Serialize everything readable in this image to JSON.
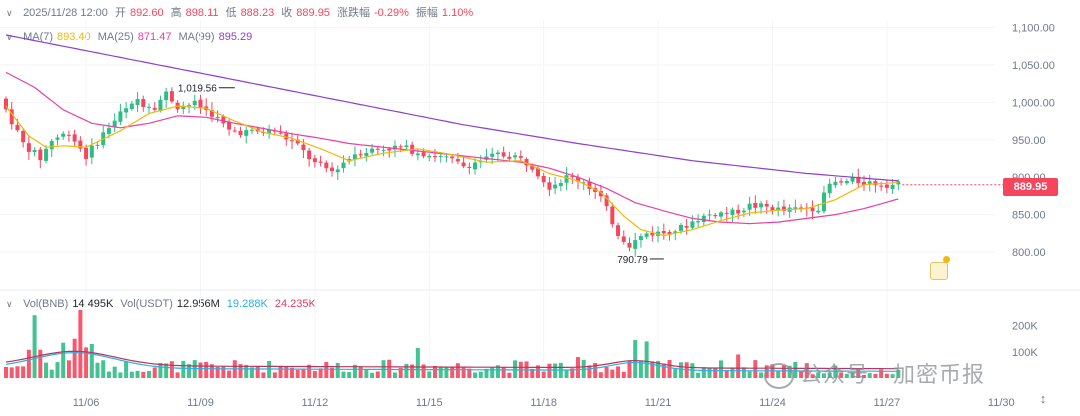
{
  "header": {
    "datetime": "2025/11/28 12:00",
    "open_label": "开",
    "open": "892.60",
    "high_label": "高",
    "high": "898.11",
    "low_label": "低",
    "low": "888.23",
    "close_label": "收",
    "close": "889.95",
    "change_label": "涨跌幅",
    "change": "-0.29%",
    "amplitude_label": "振幅",
    "amplitude": "1.10%"
  },
  "ma": {
    "ma7_label": "MA(7)",
    "ma7": "893.40",
    "ma25_label": "MA(25)",
    "ma25": "871.47",
    "ma99_label": "MA(99)",
    "ma99": "895.29"
  },
  "volume_header": {
    "vol_label": "Vol(BNB)",
    "vol": "14.495K",
    "vol_usdt_label": "Vol(USDT)",
    "vol_usdt": "12.956M",
    "v1": "19.288K",
    "v2": "24.235K"
  },
  "current_price_tag": "889.95",
  "watermark": {
    "text": "公众号 · 加密币报"
  },
  "colors": {
    "up": "#2ebd85",
    "down": "#f6465d",
    "ma7": "#f0b90b",
    "ma25": "#eb3fa3",
    "ma99": "#8c3fd1",
    "vol_ma1": "#2ab0e6",
    "vol_ma2": "#b5375a"
  },
  "chart_data": {
    "type": "candlestick",
    "price_axis": {
      "ticks": [
        "1,100.00",
        "1,050.00",
        "1,000.00",
        "950.00",
        "900.00",
        "850.00",
        "800.00"
      ],
      "range": [
        760,
        1110
      ]
    },
    "volume_axis": {
      "ticks": [
        "200K",
        "100K"
      ],
      "range": [
        0,
        260000
      ]
    },
    "x_ticks": [
      "11/06",
      "11/09",
      "11/12",
      "11/15",
      "11/18",
      "11/21",
      "11/24",
      "11/27",
      "11/30"
    ],
    "annotations": {
      "high_label": "1,019.56",
      "low_label": "790.79"
    },
    "anchors": [
      [
        0,
        1005
      ],
      [
        4,
        945
      ],
      [
        7,
        925
      ],
      [
        9,
        950
      ],
      [
        12,
        960
      ],
      [
        15,
        928
      ],
      [
        18,
        958
      ],
      [
        21,
        985
      ],
      [
        24,
        1000
      ],
      [
        27,
        995
      ],
      [
        29,
        1012
      ],
      [
        31,
        995
      ],
      [
        34,
        998
      ],
      [
        37,
        985
      ],
      [
        40,
        962
      ],
      [
        44,
        960
      ],
      [
        48,
        962
      ],
      [
        52,
        942
      ],
      [
        55,
        918
      ],
      [
        58,
        908
      ],
      [
        62,
        932
      ],
      [
        66,
        938
      ],
      [
        70,
        940
      ],
      [
        74,
        932
      ],
      [
        78,
        925
      ],
      [
        81,
        915
      ],
      [
        84,
        922
      ],
      [
        87,
        930
      ],
      [
        90,
        928
      ],
      [
        93,
        915
      ],
      [
        96,
        888
      ],
      [
        99,
        900
      ],
      [
        102,
        895
      ],
      [
        105,
        872
      ],
      [
        108,
        825
      ],
      [
        110,
        810
      ],
      [
        113,
        825
      ],
      [
        116,
        826
      ],
      [
        119,
        832
      ],
      [
        122,
        845
      ],
      [
        125,
        852
      ],
      [
        128,
        852
      ],
      [
        131,
        862
      ],
      [
        134,
        860
      ],
      [
        137,
        855
      ],
      [
        140,
        858
      ],
      [
        143,
        860
      ],
      [
        145,
        890
      ],
      [
        149,
        895
      ],
      [
        153,
        892
      ],
      [
        156,
        890
      ]
    ],
    "vol_spikes": [
      [
        5,
        240000
      ],
      [
        10,
        135000
      ],
      [
        12,
        150000
      ],
      [
        13,
        260000
      ],
      [
        15,
        130000
      ],
      [
        72,
        115000
      ],
      [
        100,
        80000
      ],
      [
        110,
        145000
      ],
      [
        112,
        140000
      ],
      [
        128,
        90000
      ],
      [
        145,
        95000
      ]
    ],
    "ma7_anchors": [
      [
        0,
        995
      ],
      [
        4,
        955
      ],
      [
        7,
        940
      ],
      [
        10,
        942
      ],
      [
        14,
        940
      ],
      [
        20,
        962
      ],
      [
        25,
        985
      ],
      [
        30,
        995
      ],
      [
        35,
        992
      ],
      [
        40,
        975
      ],
      [
        45,
        960
      ],
      [
        50,
        952
      ],
      [
        55,
        938
      ],
      [
        60,
        922
      ],
      [
        66,
        932
      ],
      [
        72,
        938
      ],
      [
        78,
        930
      ],
      [
        84,
        920
      ],
      [
        90,
        922
      ],
      [
        95,
        905
      ],
      [
        100,
        895
      ],
      [
        104,
        880
      ],
      [
        108,
        848
      ],
      [
        111,
        830
      ],
      [
        115,
        822
      ],
      [
        120,
        830
      ],
      [
        125,
        842
      ],
      [
        130,
        852
      ],
      [
        135,
        856
      ],
      [
        140,
        858
      ],
      [
        145,
        870
      ],
      [
        150,
        890
      ],
      [
        156,
        893
      ]
    ],
    "ma25_anchors": [
      [
        0,
        1040
      ],
      [
        5,
        1020
      ],
      [
        10,
        990
      ],
      [
        15,
        972
      ],
      [
        20,
        966
      ],
      [
        25,
        972
      ],
      [
        30,
        982
      ],
      [
        35,
        980
      ],
      [
        40,
        972
      ],
      [
        45,
        965
      ],
      [
        50,
        958
      ],
      [
        55,
        952
      ],
      [
        60,
        945
      ],
      [
        66,
        940
      ],
      [
        72,
        935
      ],
      [
        78,
        930
      ],
      [
        84,
        925
      ],
      [
        90,
        920
      ],
      [
        95,
        912
      ],
      [
        100,
        900
      ],
      [
        105,
        885
      ],
      [
        110,
        866
      ],
      [
        115,
        855
      ],
      [
        120,
        845
      ],
      [
        125,
        840
      ],
      [
        130,
        838
      ],
      [
        135,
        840
      ],
      [
        140,
        845
      ],
      [
        145,
        850
      ],
      [
        150,
        858
      ],
      [
        156,
        871
      ]
    ],
    "ma99_anchors": [
      [
        0,
        1090
      ],
      [
        20,
        1060
      ],
      [
        40,
        1030
      ],
      [
        60,
        1000
      ],
      [
        80,
        970
      ],
      [
        100,
        945
      ],
      [
        120,
        922
      ],
      [
        140,
        905
      ],
      [
        156,
        895
      ]
    ]
  }
}
